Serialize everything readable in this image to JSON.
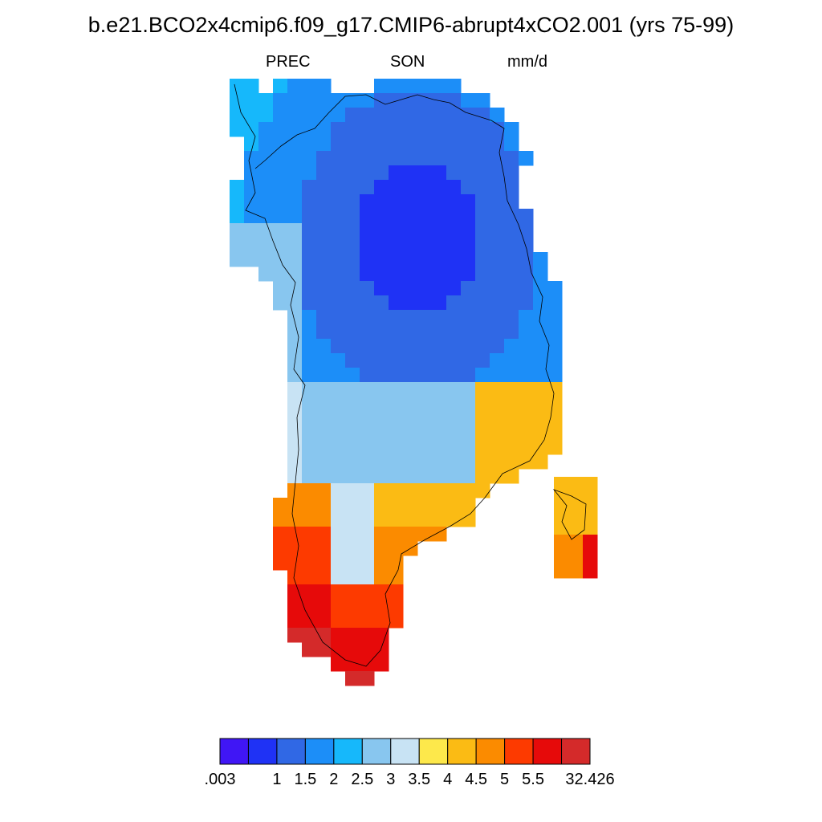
{
  "title": "b.e21.BCO2x4cmip6.f09_g17.CMIP6-abrupt4xCO2.001 (yrs 75-99)",
  "variable": "PREC",
  "season": "SON",
  "units": "mm/d",
  "colorbar": {
    "colors": [
      "#4016f5",
      "#1f32f5",
      "#3068e5",
      "#1c8ef8",
      "#16b8fb",
      "#88c6ef",
      "#c8e3f4",
      "#fde84b",
      "#fbbb14",
      "#fb8b00",
      "#fd3a00",
      "#e60a0a",
      "#d42a2a"
    ],
    "labels": [
      ".003",
      "1",
      "1.5",
      "2",
      "2.5",
      "3",
      "3.5",
      "4",
      "4.5",
      "5",
      "5.5",
      "32.426"
    ]
  }
}
